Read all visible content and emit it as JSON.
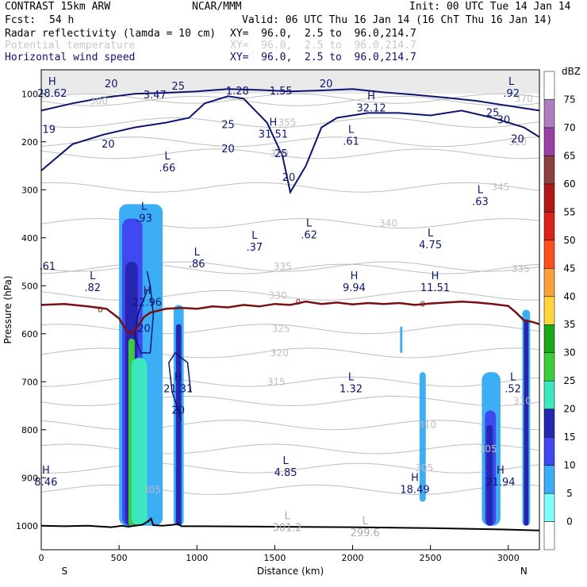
{
  "header": {
    "model": "CONTRAST 15km ARW",
    "org": "NCAR/MMM",
    "init": "Init: 00 UTC Tue 14 Jan 14",
    "fcst_label": "Fcst:",
    "fcst_value": "54 h",
    "valid": "Valid: 06 UTC Thu 16 Jan 14 (16 ChT Thu 16 Jan 14)",
    "fields": [
      {
        "name": "Radar reflectivity (lamda = 10 cm)",
        "xy": "XY=  96.0,  2.5 to  96.0,214.7",
        "style": "normal"
      },
      {
        "name": "Potential temperature",
        "xy": "XY=  96.0,  2.5 to  96.0,214.7",
        "style": "muted"
      },
      {
        "name": "Horizontal wind speed",
        "xy": "XY=  96.0,  2.5 to  96.0,214.7",
        "style": "navy"
      }
    ]
  },
  "colors": {
    "theta": "#bebebe",
    "wind": "#0d1570",
    "zero_line": "#7a1010",
    "terrain": "#000000"
  },
  "chart_data": {
    "type": "cross-section",
    "xlabel": "Distance (km)",
    "ylabel": "Pressure (hPa)",
    "xlim": [
      0,
      3200
    ],
    "ylim": [
      1050,
      50
    ],
    "x_ticks": [
      0,
      500,
      1000,
      1500,
      2000,
      2500,
      3000
    ],
    "y_ticks": [
      100,
      200,
      300,
      400,
      500,
      600,
      700,
      800,
      900,
      1000
    ],
    "end_labels": {
      "left": "S",
      "right": "N"
    },
    "colorbar": {
      "title": "dBZ",
      "levels": [
        0,
        5,
        10,
        15,
        20,
        25,
        30,
        35,
        40,
        45,
        50,
        55,
        60,
        65,
        70,
        75
      ],
      "colors": [
        "#ffffff",
        "#7ffcfc",
        "#3caef5",
        "#4048f0",
        "#2626b0",
        "#3ce8c0",
        "#3ccc3c",
        "#18a818",
        "#fcd63c",
        "#fca03c",
        "#fc5020",
        "#d82418",
        "#b01818",
        "#8c4040",
        "#9c40a8",
        "#b07cc0",
        "#ffffff"
      ]
    },
    "zero_isotherm_label": "0",
    "zero_isotherm": [
      [
        0,
        540
      ],
      [
        150,
        538
      ],
      [
        300,
        543
      ],
      [
        420,
        548
      ],
      [
        500,
        568
      ],
      [
        550,
        595
      ],
      [
        580,
        600
      ],
      [
        620,
        585
      ],
      [
        660,
        565
      ],
      [
        700,
        556
      ],
      [
        800,
        548
      ],
      [
        900,
        546
      ],
      [
        1000,
        548
      ],
      [
        1100,
        543
      ],
      [
        1200,
        545
      ],
      [
        1300,
        540
      ],
      [
        1400,
        543
      ],
      [
        1500,
        538
      ],
      [
        1600,
        540
      ],
      [
        1700,
        533
      ],
      [
        1800,
        538
      ],
      [
        1900,
        535
      ],
      [
        2000,
        539
      ],
      [
        2100,
        536
      ],
      [
        2200,
        538
      ],
      [
        2300,
        536
      ],
      [
        2400,
        540
      ],
      [
        2500,
        537
      ],
      [
        2600,
        535
      ],
      [
        2700,
        533
      ],
      [
        2800,
        535
      ],
      [
        2900,
        538
      ],
      [
        3000,
        542
      ],
      [
        3050,
        556
      ],
      [
        3100,
        572
      ],
      [
        3150,
        575
      ],
      [
        3200,
        580
      ]
    ],
    "terrain": [
      [
        0,
        1000
      ],
      [
        150,
        1001
      ],
      [
        300,
        1000
      ],
      [
        450,
        1003
      ],
      [
        520,
        1000
      ],
      [
        560,
        1002
      ],
      [
        600,
        1000
      ],
      [
        650,
        998
      ],
      [
        690,
        990
      ],
      [
        705,
        985
      ],
      [
        720,
        999
      ],
      [
        780,
        1000
      ],
      [
        850,
        998
      ],
      [
        880,
        996
      ],
      [
        900,
        1001
      ],
      [
        1000,
        1001
      ],
      [
        1500,
        1002
      ],
      [
        2000,
        1003
      ],
      [
        2500,
        1005
      ],
      [
        3000,
        1008
      ],
      [
        3200,
        1010
      ]
    ],
    "theta_contours": [
      {
        "label": "300",
        "label_at": [
          370,
          115
        ]
      },
      {
        "label": "305",
        "label_at": [
          2460,
          880
        ]
      },
      {
        "label": "305",
        "label_at": [
          710,
          925
        ]
      },
      {
        "label": "305",
        "label_at": [
          2870,
          840
        ]
      },
      {
        "label": "310",
        "label_at": [
          2480,
          790
        ]
      },
      {
        "label": "310",
        "label_at": [
          3090,
          740
        ]
      },
      {
        "label": "315",
        "label_at": [
          1510,
          700
        ]
      },
      {
        "label": "320",
        "label_at": [
          1530,
          640
        ]
      },
      {
        "label": "325",
        "label_at": [
          1540,
          590
        ]
      },
      {
        "label": "330",
        "label_at": [
          1520,
          520
        ]
      },
      {
        "label": "335",
        "label_at": [
          1550,
          460
        ]
      },
      {
        "label": "335",
        "label_at": [
          3080,
          465
        ]
      },
      {
        "label": "340",
        "label_at": [
          2230,
          370
        ]
      },
      {
        "label": "345",
        "label_at": [
          2950,
          295
        ]
      },
      {
        "label": "350",
        "label_at": [
          1530,
          225
        ]
      },
      {
        "label": "355",
        "label_at": [
          1580,
          160
        ]
      },
      {
        "label": "320",
        "label_at": [
          3060,
          200
        ]
      },
      {
        "label": "370",
        "label_at": [
          3100,
          110
        ]
      }
    ],
    "wind_labels": [
      {
        "label": "20",
        "at": [
          450,
          80
        ]
      },
      {
        "label": "25",
        "at": [
          880,
          85
        ]
      },
      {
        "label": "20",
        "at": [
          1830,
          80
        ]
      },
      {
        "label": "25",
        "at": [
          1200,
          165
        ]
      },
      {
        "label": "19",
        "at": [
          50,
          175
        ]
      },
      {
        "label": "20",
        "at": [
          430,
          205
        ]
      },
      {
        "label": "20",
        "at": [
          1200,
          215
        ]
      },
      {
        "label": "25",
        "at": [
          1540,
          225
        ]
      },
      {
        "label": "20",
        "at": [
          1590,
          275
        ]
      },
      {
        "label": "25",
        "at": [
          2900,
          140
        ]
      },
      {
        "label": "30",
        "at": [
          2970,
          155
        ]
      },
      {
        "label": "20",
        "at": [
          3060,
          195
        ]
      },
      {
        "label": "20",
        "at": [
          660,
          590
        ]
      },
      {
        "label": "20",
        "at": [
          880,
          760
        ]
      }
    ],
    "extrema": [
      {
        "type": "H",
        "value": "28.62",
        "at": [
          70,
          85
        ],
        "style": "navy"
      },
      {
        "type": "",
        "value": "3.47",
        "at": [
          730,
          88
        ],
        "style": "navy"
      },
      {
        "type": "",
        "value": "1.28",
        "at": [
          1260,
          80
        ],
        "style": "navy"
      },
      {
        "type": "",
        "value": "1.55",
        "at": [
          1540,
          80
        ],
        "style": "navy"
      },
      {
        "type": "H",
        "value": "32.12",
        "at": [
          2120,
          115
        ],
        "style": "navy"
      },
      {
        "type": "L",
        "value": ".92",
        "at": [
          3020,
          85
        ],
        "style": "navy"
      },
      {
        "type": "H",
        "value": "31.51",
        "at": [
          1490,
          170
        ],
        "style": "navy"
      },
      {
        "type": "L",
        "value": ".61",
        "at": [
          1990,
          185
        ],
        "style": "navy"
      },
      {
        "type": "L",
        "value": ".66",
        "at": [
          810,
          240
        ],
        "style": "navy"
      },
      {
        "type": "L",
        "value": ".63",
        "at": [
          2820,
          310
        ],
        "style": "navy"
      },
      {
        "type": "L",
        "value": ".93",
        "at": [
          660,
          345
        ],
        "style": "navy"
      },
      {
        "type": "L",
        "value": ".62",
        "at": [
          1720,
          380
        ],
        "style": "navy"
      },
      {
        "type": "L",
        "value": ".37",
        "at": [
          1370,
          405
        ],
        "style": "navy"
      },
      {
        "type": "L",
        "value": "4.75",
        "at": [
          2500,
          400
        ],
        "style": "navy"
      },
      {
        "type": "L",
        "value": ".86",
        "at": [
          1000,
          440
        ],
        "style": "navy"
      },
      {
        "type": "",
        "value": ".61",
        "at": [
          40,
          445
        ],
        "style": "navy"
      },
      {
        "type": "L",
        "value": ".82",
        "at": [
          330,
          490
        ],
        "style": "navy"
      },
      {
        "type": "H",
        "value": "22.96",
        "at": [
          680,
          520
        ],
        "style": "navy"
      },
      {
        "type": "H",
        "value": "9.94",
        "at": [
          2010,
          490
        ],
        "style": "navy"
      },
      {
        "type": "H",
        "value": "11.51",
        "at": [
          2530,
          490
        ],
        "style": "navy"
      },
      {
        "type": "H",
        "value": "21.31",
        "at": [
          880,
          700
        ],
        "style": "navy"
      },
      {
        "type": "L",
        "value": "1.32",
        "at": [
          1990,
          700
        ],
        "style": "navy"
      },
      {
        "type": "L",
        "value": ".52",
        "at": [
          3030,
          700
        ],
        "style": "navy"
      },
      {
        "type": "L",
        "value": "4.85",
        "at": [
          1570,
          875
        ],
        "style": "navy"
      },
      {
        "type": "H",
        "value": "8.46",
        "at": [
          30,
          895
        ],
        "style": "navy"
      },
      {
        "type": "H",
        "value": "18.49",
        "at": [
          2400,
          910
        ],
        "style": "navy"
      },
      {
        "type": "H",
        "value": "21.94",
        "at": [
          2950,
          895
        ],
        "style": "navy"
      },
      {
        "type": "L",
        "value": "301.2",
        "at": [
          1580,
          990
        ],
        "style": "muted"
      },
      {
        "type": "L",
        "value": "299.6",
        "at": [
          2080,
          1000
        ],
        "style": "muted"
      }
    ],
    "reflectivity_cells": [
      {
        "x": [
          500,
          780
        ],
        "p": [
          330,
          1000
        ],
        "dbz": 5
      },
      {
        "x": [
          520,
          650
        ],
        "p": [
          360,
          1000
        ],
        "dbz": 10
      },
      {
        "x": [
          540,
          620
        ],
        "p": [
          450,
          1000
        ],
        "dbz": 15
      },
      {
        "x": [
          560,
          600
        ],
        "p": [
          610,
          1000
        ],
        "dbz": 25
      },
      {
        "x": [
          580,
          680
        ],
        "p": [
          650,
          1000
        ],
        "dbz": 20
      },
      {
        "x": [
          850,
          915
        ],
        "p": [
          540,
          1000
        ],
        "dbz": 5
      },
      {
        "x": [
          865,
          900
        ],
        "p": [
          580,
          1000
        ],
        "dbz": 15
      },
      {
        "x": [
          2305,
          2320
        ],
        "p": [
          585,
          640
        ],
        "dbz": 5
      },
      {
        "x": [
          2430,
          2470
        ],
        "p": [
          680,
          950
        ],
        "dbz": 5
      },
      {
        "x": [
          2830,
          2950
        ],
        "p": [
          680,
          1000
        ],
        "dbz": 5
      },
      {
        "x": [
          2850,
          2920
        ],
        "p": [
          760,
          1000
        ],
        "dbz": 10
      },
      {
        "x": [
          2860,
          2900
        ],
        "p": [
          790,
          1000
        ],
        "dbz": 15
      },
      {
        "x": [
          3090,
          3140
        ],
        "p": [
          550,
          1000
        ],
        "dbz": 5
      },
      {
        "x": [
          3100,
          3130
        ],
        "p": [
          570,
          1000
        ],
        "dbz": 15
      }
    ]
  }
}
